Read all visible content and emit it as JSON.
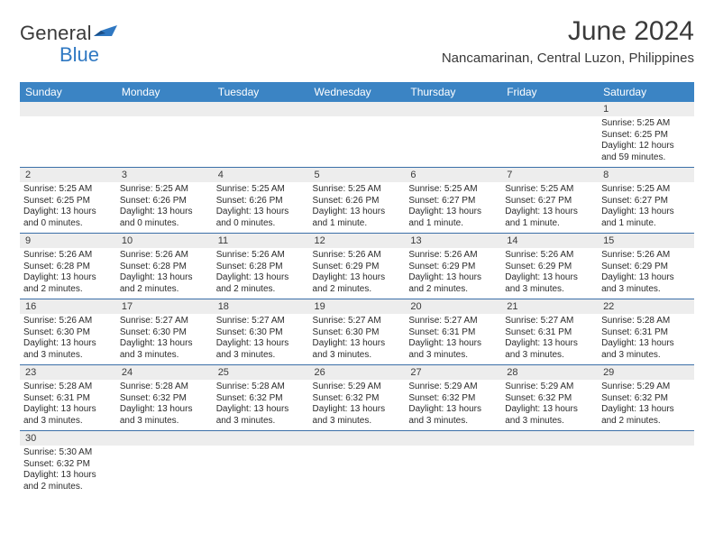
{
  "brand": {
    "general": "General",
    "blue": "Blue"
  },
  "header": {
    "month_title": "June 2024",
    "location": "Nancamarinan, Central Luzon, Philippines"
  },
  "colors": {
    "header_bg": "#3b84c4",
    "header_text": "#ffffff",
    "daynum_bg": "#ededed",
    "rule": "#3b6fa8",
    "body_text": "#2b2b2b",
    "title_text": "#3a3a3a",
    "brand_blue": "#2f78c2"
  },
  "day_headers": [
    "Sunday",
    "Monday",
    "Tuesday",
    "Wednesday",
    "Thursday",
    "Friday",
    "Saturday"
  ],
  "weeks": [
    {
      "nums": [
        "",
        "",
        "",
        "",
        "",
        "",
        "1"
      ],
      "cells": [
        null,
        null,
        null,
        null,
        null,
        null,
        {
          "sunrise": "Sunrise: 5:25 AM",
          "sunset": "Sunset: 6:25 PM",
          "day1": "Daylight: 12 hours",
          "day2": "and 59 minutes."
        }
      ]
    },
    {
      "nums": [
        "2",
        "3",
        "4",
        "5",
        "6",
        "7",
        "8"
      ],
      "cells": [
        {
          "sunrise": "Sunrise: 5:25 AM",
          "sunset": "Sunset: 6:25 PM",
          "day1": "Daylight: 13 hours",
          "day2": "and 0 minutes."
        },
        {
          "sunrise": "Sunrise: 5:25 AM",
          "sunset": "Sunset: 6:26 PM",
          "day1": "Daylight: 13 hours",
          "day2": "and 0 minutes."
        },
        {
          "sunrise": "Sunrise: 5:25 AM",
          "sunset": "Sunset: 6:26 PM",
          "day1": "Daylight: 13 hours",
          "day2": "and 0 minutes."
        },
        {
          "sunrise": "Sunrise: 5:25 AM",
          "sunset": "Sunset: 6:26 PM",
          "day1": "Daylight: 13 hours",
          "day2": "and 1 minute."
        },
        {
          "sunrise": "Sunrise: 5:25 AM",
          "sunset": "Sunset: 6:27 PM",
          "day1": "Daylight: 13 hours",
          "day2": "and 1 minute."
        },
        {
          "sunrise": "Sunrise: 5:25 AM",
          "sunset": "Sunset: 6:27 PM",
          "day1": "Daylight: 13 hours",
          "day2": "and 1 minute."
        },
        {
          "sunrise": "Sunrise: 5:25 AM",
          "sunset": "Sunset: 6:27 PM",
          "day1": "Daylight: 13 hours",
          "day2": "and 1 minute."
        }
      ]
    },
    {
      "nums": [
        "9",
        "10",
        "11",
        "12",
        "13",
        "14",
        "15"
      ],
      "cells": [
        {
          "sunrise": "Sunrise: 5:26 AM",
          "sunset": "Sunset: 6:28 PM",
          "day1": "Daylight: 13 hours",
          "day2": "and 2 minutes."
        },
        {
          "sunrise": "Sunrise: 5:26 AM",
          "sunset": "Sunset: 6:28 PM",
          "day1": "Daylight: 13 hours",
          "day2": "and 2 minutes."
        },
        {
          "sunrise": "Sunrise: 5:26 AM",
          "sunset": "Sunset: 6:28 PM",
          "day1": "Daylight: 13 hours",
          "day2": "and 2 minutes."
        },
        {
          "sunrise": "Sunrise: 5:26 AM",
          "sunset": "Sunset: 6:29 PM",
          "day1": "Daylight: 13 hours",
          "day2": "and 2 minutes."
        },
        {
          "sunrise": "Sunrise: 5:26 AM",
          "sunset": "Sunset: 6:29 PM",
          "day1": "Daylight: 13 hours",
          "day2": "and 2 minutes."
        },
        {
          "sunrise": "Sunrise: 5:26 AM",
          "sunset": "Sunset: 6:29 PM",
          "day1": "Daylight: 13 hours",
          "day2": "and 3 minutes."
        },
        {
          "sunrise": "Sunrise: 5:26 AM",
          "sunset": "Sunset: 6:29 PM",
          "day1": "Daylight: 13 hours",
          "day2": "and 3 minutes."
        }
      ]
    },
    {
      "nums": [
        "16",
        "17",
        "18",
        "19",
        "20",
        "21",
        "22"
      ],
      "cells": [
        {
          "sunrise": "Sunrise: 5:26 AM",
          "sunset": "Sunset: 6:30 PM",
          "day1": "Daylight: 13 hours",
          "day2": "and 3 minutes."
        },
        {
          "sunrise": "Sunrise: 5:27 AM",
          "sunset": "Sunset: 6:30 PM",
          "day1": "Daylight: 13 hours",
          "day2": "and 3 minutes."
        },
        {
          "sunrise": "Sunrise: 5:27 AM",
          "sunset": "Sunset: 6:30 PM",
          "day1": "Daylight: 13 hours",
          "day2": "and 3 minutes."
        },
        {
          "sunrise": "Sunrise: 5:27 AM",
          "sunset": "Sunset: 6:30 PM",
          "day1": "Daylight: 13 hours",
          "day2": "and 3 minutes."
        },
        {
          "sunrise": "Sunrise: 5:27 AM",
          "sunset": "Sunset: 6:31 PM",
          "day1": "Daylight: 13 hours",
          "day2": "and 3 minutes."
        },
        {
          "sunrise": "Sunrise: 5:27 AM",
          "sunset": "Sunset: 6:31 PM",
          "day1": "Daylight: 13 hours",
          "day2": "and 3 minutes."
        },
        {
          "sunrise": "Sunrise: 5:28 AM",
          "sunset": "Sunset: 6:31 PM",
          "day1": "Daylight: 13 hours",
          "day2": "and 3 minutes."
        }
      ]
    },
    {
      "nums": [
        "23",
        "24",
        "25",
        "26",
        "27",
        "28",
        "29"
      ],
      "cells": [
        {
          "sunrise": "Sunrise: 5:28 AM",
          "sunset": "Sunset: 6:31 PM",
          "day1": "Daylight: 13 hours",
          "day2": "and 3 minutes."
        },
        {
          "sunrise": "Sunrise: 5:28 AM",
          "sunset": "Sunset: 6:32 PM",
          "day1": "Daylight: 13 hours",
          "day2": "and 3 minutes."
        },
        {
          "sunrise": "Sunrise: 5:28 AM",
          "sunset": "Sunset: 6:32 PM",
          "day1": "Daylight: 13 hours",
          "day2": "and 3 minutes."
        },
        {
          "sunrise": "Sunrise: 5:29 AM",
          "sunset": "Sunset: 6:32 PM",
          "day1": "Daylight: 13 hours",
          "day2": "and 3 minutes."
        },
        {
          "sunrise": "Sunrise: 5:29 AM",
          "sunset": "Sunset: 6:32 PM",
          "day1": "Daylight: 13 hours",
          "day2": "and 3 minutes."
        },
        {
          "sunrise": "Sunrise: 5:29 AM",
          "sunset": "Sunset: 6:32 PM",
          "day1": "Daylight: 13 hours",
          "day2": "and 3 minutes."
        },
        {
          "sunrise": "Sunrise: 5:29 AM",
          "sunset": "Sunset: 6:32 PM",
          "day1": "Daylight: 13 hours",
          "day2": "and 2 minutes."
        }
      ]
    },
    {
      "nums": [
        "30",
        "",
        "",
        "",
        "",
        "",
        ""
      ],
      "cells": [
        {
          "sunrise": "Sunrise: 5:30 AM",
          "sunset": "Sunset: 6:32 PM",
          "day1": "Daylight: 13 hours",
          "day2": "and 2 minutes."
        },
        null,
        null,
        null,
        null,
        null,
        null
      ]
    }
  ]
}
